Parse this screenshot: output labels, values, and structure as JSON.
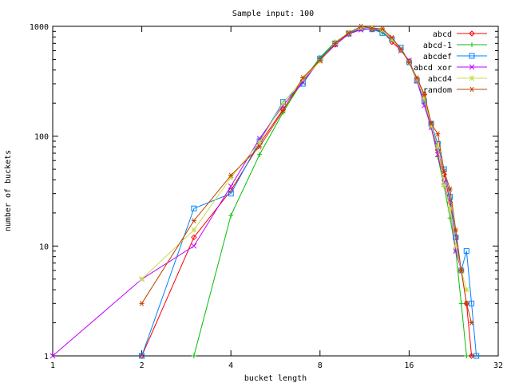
{
  "chart_data": {
    "type": "line",
    "title": "Sample input: 100",
    "xlabel": "bucket length",
    "ylabel": "number of buckets",
    "x_scale": "log2",
    "y_scale": "log10",
    "xlim": [
      1,
      32
    ],
    "ylim": [
      1,
      1000
    ],
    "x_ticks": [
      1,
      2,
      4,
      8,
      16,
      32
    ],
    "x_tick_labels": [
      "1",
      "2",
      "4",
      "8",
      "16",
      "32"
    ],
    "y_ticks": [
      1,
      10,
      100,
      1000
    ],
    "y_tick_labels": [
      "1",
      "10",
      "100",
      "1000"
    ],
    "grid": false,
    "legend_position": "top-right",
    "series": [
      {
        "name": "abcd",
        "color": "#ff0000",
        "marker": "diamond",
        "points": [
          [
            2,
            1
          ],
          [
            3,
            12
          ],
          [
            4,
            32
          ],
          [
            5,
            85
          ],
          [
            6,
            175
          ],
          [
            7,
            320
          ],
          [
            8,
            500
          ],
          [
            9,
            680
          ],
          [
            10,
            850
          ],
          [
            11,
            950
          ],
          [
            12,
            940
          ],
          [
            13,
            900
          ],
          [
            14,
            720
          ],
          [
            15,
            610
          ],
          [
            16,
            480
          ],
          [
            17,
            330
          ],
          [
            18,
            240
          ],
          [
            19,
            130
          ],
          [
            20,
            75
          ],
          [
            21,
            45
          ],
          [
            22,
            25
          ],
          [
            23,
            12
          ],
          [
            24,
            6
          ],
          [
            25,
            3
          ],
          [
            26,
            1
          ]
        ]
      },
      {
        "name": "abcd-1",
        "color": "#00c000",
        "marker": "plus",
        "points": [
          [
            3,
            1
          ],
          [
            4,
            19
          ],
          [
            5,
            68
          ],
          [
            6,
            165
          ],
          [
            7,
            320
          ],
          [
            8,
            520
          ],
          [
            9,
            720
          ],
          [
            10,
            870
          ],
          [
            11,
            950
          ],
          [
            12,
            950
          ],
          [
            13,
            880
          ],
          [
            14,
            760
          ],
          [
            15,
            620
          ],
          [
            16,
            470
          ],
          [
            17,
            320
          ],
          [
            18,
            210
          ],
          [
            19,
            120
          ],
          [
            20,
            65
          ],
          [
            21,
            35
          ],
          [
            22,
            18
          ],
          [
            23,
            9
          ],
          [
            24,
            3
          ],
          [
            25,
            1
          ]
        ]
      },
      {
        "name": "abcdef",
        "color": "#0080ff",
        "marker": "square",
        "points": [
          [
            2,
            1
          ],
          [
            3,
            22
          ],
          [
            4,
            30
          ],
          [
            5,
            90
          ],
          [
            6,
            205
          ],
          [
            7,
            300
          ],
          [
            8,
            510
          ],
          [
            9,
            700
          ],
          [
            10,
            860
          ],
          [
            11,
            960
          ],
          [
            12,
            940
          ],
          [
            13,
            870
          ],
          [
            14,
            760
          ],
          [
            15,
            640
          ],
          [
            16,
            470
          ],
          [
            17,
            320
          ],
          [
            18,
            210
          ],
          [
            19,
            130
          ],
          [
            20,
            85
          ],
          [
            21,
            50
          ],
          [
            22,
            28
          ],
          [
            23,
            12
          ],
          [
            24,
            6
          ],
          [
            25,
            9
          ],
          [
            26,
            3
          ],
          [
            27,
            1
          ]
        ]
      },
      {
        "name": "abcd xor",
        "color": "#c000ff",
        "marker": "cross",
        "points": [
          [
            1,
            1
          ],
          [
            2,
            5
          ],
          [
            3,
            10
          ],
          [
            4,
            35
          ],
          [
            5,
            95
          ],
          [
            6,
            190
          ],
          [
            7,
            310
          ],
          [
            8,
            490
          ],
          [
            9,
            680
          ],
          [
            10,
            850
          ],
          [
            11,
            930
          ],
          [
            12,
            950
          ],
          [
            13,
            920
          ],
          [
            14,
            770
          ],
          [
            15,
            600
          ],
          [
            16,
            490
          ],
          [
            17,
            320
          ],
          [
            18,
            190
          ],
          [
            19,
            120
          ],
          [
            20,
            68
          ],
          [
            21,
            38
          ],
          [
            22,
            22
          ],
          [
            23,
            9
          ],
          [
            24,
            6
          ]
        ]
      },
      {
        "name": "abcd4",
        "color": "#c8dc50",
        "marker": "star",
        "points": [
          [
            2,
            5
          ],
          [
            3,
            14
          ],
          [
            4,
            42
          ],
          [
            5,
            88
          ],
          [
            6,
            200
          ],
          [
            7,
            330
          ],
          [
            8,
            480
          ],
          [
            9,
            710
          ],
          [
            10,
            880
          ],
          [
            11,
            970
          ],
          [
            12,
            980
          ],
          [
            13,
            920
          ],
          [
            14,
            760
          ],
          [
            15,
            620
          ],
          [
            16,
            470
          ],
          [
            17,
            330
          ],
          [
            18,
            220
          ],
          [
            19,
            125
          ],
          [
            20,
            80
          ],
          [
            21,
            36
          ],
          [
            22,
            22
          ],
          [
            23,
            10
          ],
          [
            24,
            6
          ],
          [
            25,
            4
          ]
        ]
      },
      {
        "name": "random",
        "color": "#c04000",
        "marker": "asterisk",
        "points": [
          [
            2,
            3
          ],
          [
            3,
            17
          ],
          [
            4,
            44
          ],
          [
            5,
            80
          ],
          [
            6,
            170
          ],
          [
            7,
            340
          ],
          [
            8,
            490
          ],
          [
            9,
            700
          ],
          [
            10,
            870
          ],
          [
            11,
            1000
          ],
          [
            12,
            960
          ],
          [
            13,
            950
          ],
          [
            14,
            790
          ],
          [
            15,
            620
          ],
          [
            16,
            470
          ],
          [
            17,
            340
          ],
          [
            18,
            240
          ],
          [
            19,
            130
          ],
          [
            20,
            105
          ],
          [
            21,
            48
          ],
          [
            22,
            33
          ],
          [
            23,
            14
          ],
          [
            24,
            6
          ],
          [
            25,
            3
          ],
          [
            26,
            2
          ]
        ]
      }
    ]
  }
}
